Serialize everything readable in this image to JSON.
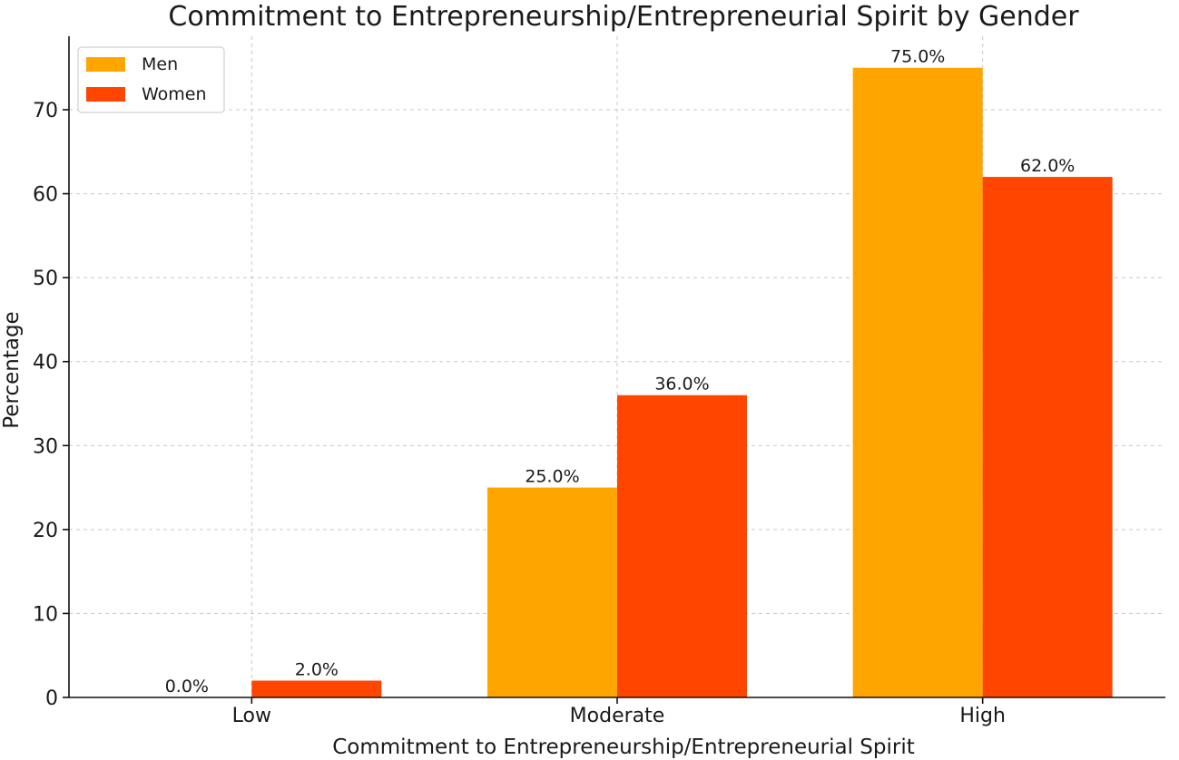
{
  "chart_data": {
    "type": "bar",
    "title": "Commitment to Entrepreneurship/Entrepreneurial Spirit by Gender",
    "xlabel": "Commitment to Entrepreneurship/Entrepreneurial Spirit",
    "ylabel": "Percentage",
    "categories": [
      "Low",
      "Moderate",
      "High"
    ],
    "series": [
      {
        "name": "Men",
        "values": [
          0.0,
          25.0,
          75.0
        ],
        "labels": [
          "0.0%",
          "25.0%",
          "75.0%"
        ],
        "color": "#FFA500"
      },
      {
        "name": "Women",
        "values": [
          2.0,
          36.0,
          62.0
        ],
        "labels": [
          "2.0%",
          "36.0%",
          "62.0%"
        ],
        "color": "#FF4500"
      }
    ],
    "ylim": [
      0,
      78.75
    ],
    "yticks": [
      0,
      10,
      20,
      30,
      40,
      50,
      60,
      70
    ],
    "grid": true,
    "legend_position": "top-left"
  }
}
